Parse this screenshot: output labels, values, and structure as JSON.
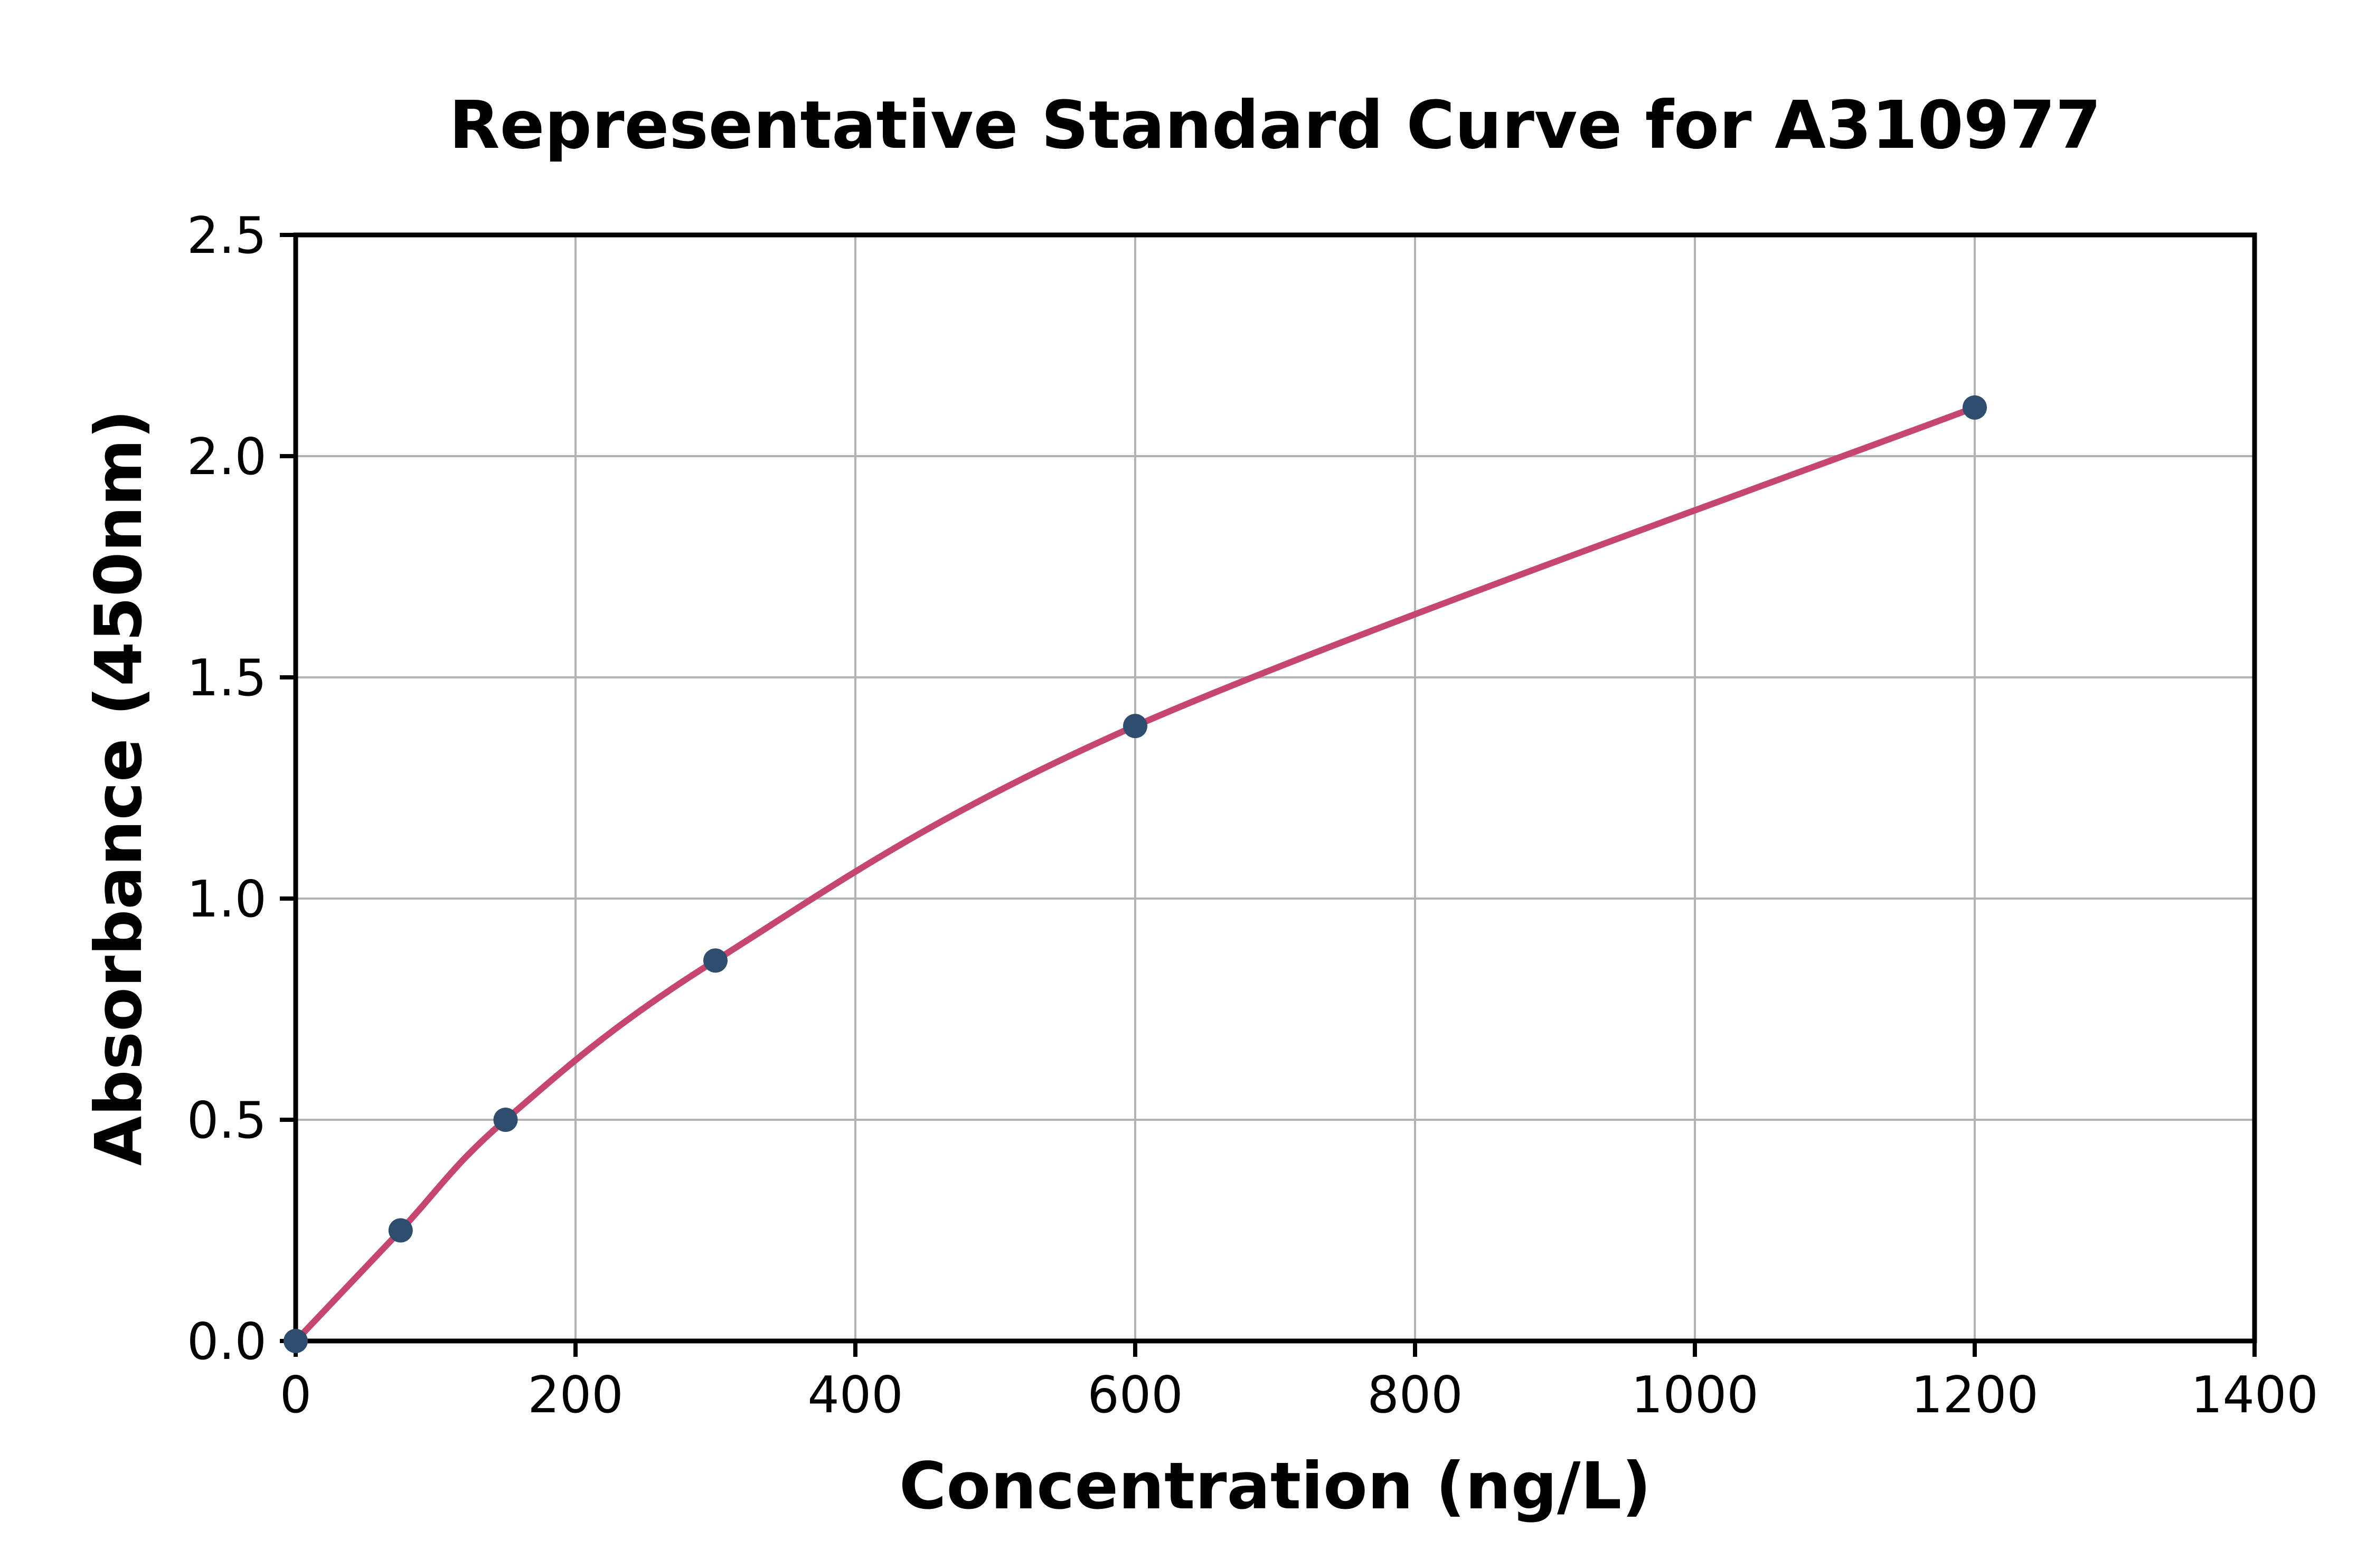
{
  "chart_data": {
    "type": "scatter",
    "title": "Representative Standard Curve for A310977",
    "xlabel": "Concentration (ng/L)",
    "ylabel": "Absorbance (450nm)",
    "x": [
      0,
      75,
      150,
      300,
      600,
      1200
    ],
    "y": [
      0.0,
      0.25,
      0.5,
      0.86,
      1.39,
      2.11
    ],
    "xlim": [
      0,
      1400
    ],
    "ylim": [
      0,
      2.5
    ],
    "xticks": [
      0,
      200,
      400,
      600,
      800,
      1000,
      1200,
      1400
    ],
    "xtick_labels": [
      "0",
      "200",
      "400",
      "600",
      "800",
      "1000",
      "1200",
      "1400"
    ],
    "yticks": [
      0.0,
      0.5,
      1.0,
      1.5,
      2.0,
      2.5
    ],
    "ytick_labels": [
      "0.0",
      "0.5",
      "1.0",
      "1.5",
      "2.0",
      "2.5"
    ],
    "grid": true,
    "legend": "none",
    "colors": {
      "curve": "#C5466E",
      "point": "#2F4D6E",
      "grid": "#B3B3B3",
      "axis": "#000000",
      "background": "#FFFFFF"
    }
  }
}
